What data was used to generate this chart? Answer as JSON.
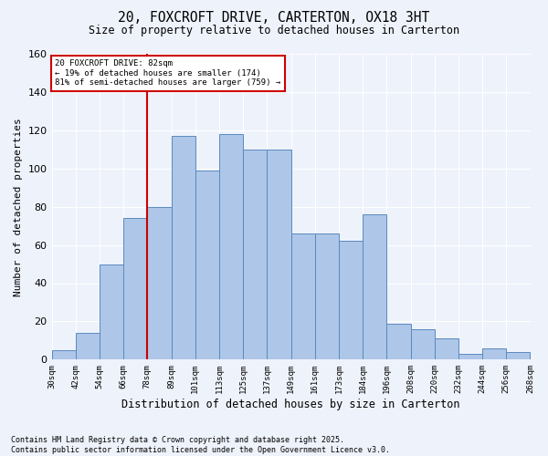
{
  "title": "20, FOXCROFT DRIVE, CARTERTON, OX18 3HT",
  "subtitle": "Size of property relative to detached houses in Carterton",
  "xlabel": "Distribution of detached houses by size in Carterton",
  "ylabel": "Number of detached properties",
  "bar_heights": [
    5,
    14,
    50,
    74,
    80,
    117,
    99,
    118,
    110,
    110,
    66,
    66,
    62,
    76,
    19,
    16,
    11,
    3,
    6,
    4
  ],
  "bin_labels": [
    "30sqm",
    "42sqm",
    "54sqm",
    "66sqm",
    "78sqm",
    "89sqm",
    "101sqm",
    "113sqm",
    "125sqm",
    "137sqm",
    "149sqm",
    "161sqm",
    "173sqm",
    "184sqm",
    "196sqm",
    "208sqm",
    "220sqm",
    "232sqm",
    "244sqm",
    "256sqm",
    "268sqm"
  ],
  "bar_color": "#aec6e8",
  "bar_edge_color": "#5a8abf",
  "background_color": "#eef2fb",
  "grid_color": "#ffffff",
  "annotation_text": "20 FOXCROFT DRIVE: 82sqm\n← 19% of detached houses are smaller (174)\n81% of semi-detached houses are larger (759) →",
  "vline_x": 4.0,
  "annotation_box_color": "#ffffff",
  "annotation_box_edge": "#cc0000",
  "footer": "Contains HM Land Registry data © Crown copyright and database right 2025.\nContains public sector information licensed under the Open Government Licence v3.0.",
  "ylim": [
    0,
    160
  ],
  "yticks": [
    0,
    20,
    40,
    60,
    80,
    100,
    120,
    140,
    160
  ]
}
